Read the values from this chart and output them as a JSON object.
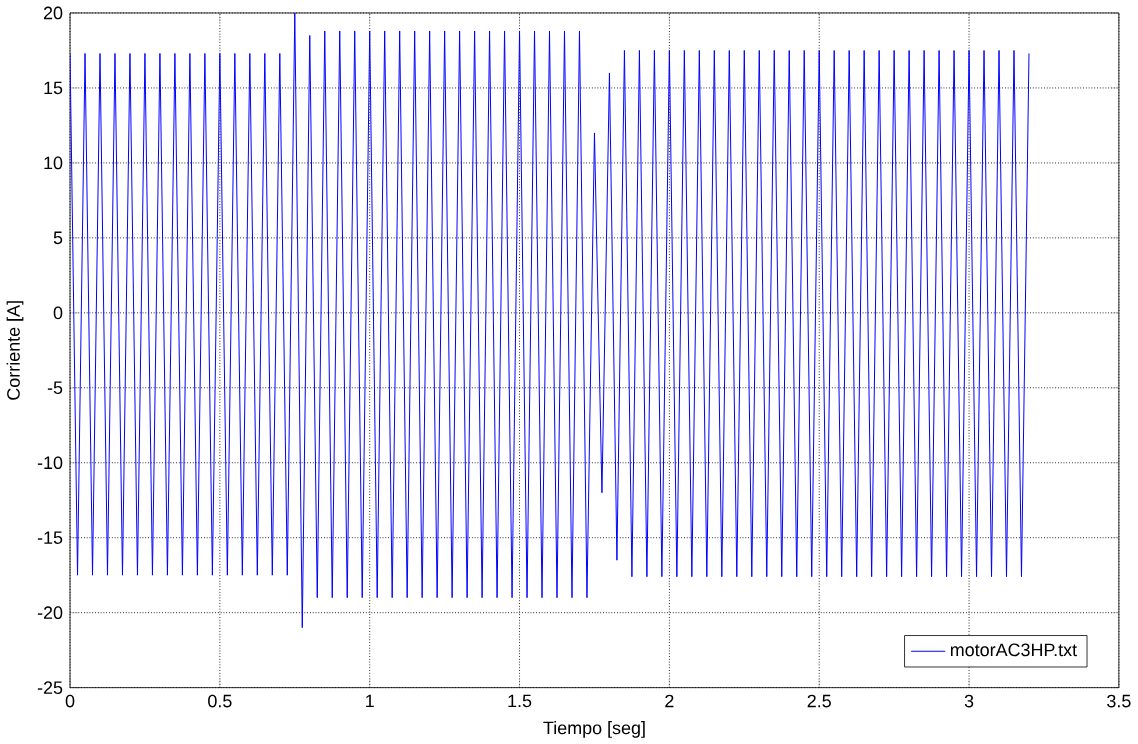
{
  "chart_data": {
    "type": "line",
    "xlabel": "Tiempo [seg]",
    "ylabel": "Corriente [A]",
    "xlim": [
      0,
      3.5
    ],
    "ylim": [
      -25,
      20
    ],
    "xticks": [
      0,
      0.5,
      1,
      1.5,
      2,
      2.5,
      3,
      3.5
    ],
    "yticks": [
      -25,
      -20,
      -15,
      -10,
      -5,
      0,
      5,
      10,
      15,
      20
    ],
    "grid": true,
    "legend": "bottom right",
    "series": [
      {
        "name": "motorAC3HP.txt",
        "color": "#0000ff",
        "x": [
          0,
          0.025,
          0.05,
          0.075,
          0.1,
          0.125,
          0.15,
          0.175,
          0.2,
          0.225,
          0.25,
          0.275,
          0.3,
          0.325,
          0.35,
          0.375,
          0.4,
          0.425,
          0.45,
          0.475,
          0.5,
          0.525,
          0.55,
          0.575,
          0.6,
          0.625,
          0.65,
          0.675,
          0.7,
          0.725,
          0.75,
          0.775,
          0.8,
          0.825,
          0.85,
          0.875,
          0.9,
          0.925,
          0.95,
          0.975,
          1,
          1.025,
          1.05,
          1.075,
          1.1,
          1.125,
          1.15,
          1.175,
          1.2,
          1.225,
          1.25,
          1.275,
          1.3,
          1.325,
          1.35,
          1.375,
          1.4,
          1.425,
          1.45,
          1.475,
          1.5,
          1.525,
          1.55,
          1.575,
          1.6,
          1.625,
          1.65,
          1.675,
          1.7,
          1.725,
          1.75,
          1.775,
          1.8,
          1.825,
          1.85,
          1.875,
          1.9,
          1.925,
          1.95,
          1.975,
          2,
          2.025,
          2.05,
          2.075,
          2.1,
          2.125,
          2.15,
          2.175,
          2.2,
          2.225,
          2.25,
          2.275,
          2.3,
          2.325,
          2.35,
          2.375,
          2.4,
          2.425,
          2.45,
          2.475,
          2.5,
          2.525,
          2.55,
          2.575,
          2.6,
          2.625,
          2.65,
          2.675,
          2.7,
          2.725,
          2.75,
          2.775,
          2.8,
          2.825,
          2.85,
          2.875,
          2.9,
          2.925,
          2.95,
          2.975,
          3,
          3.025,
          3.05,
          3.075,
          3.1,
          3.125,
          3.15,
          3.175,
          3.2
        ],
        "values": [
          17.3,
          -17.5,
          17.3,
          -17.5,
          17.3,
          -17.5,
          17.3,
          -17.5,
          17.3,
          -17.5,
          17.3,
          -17.5,
          17.3,
          -17.5,
          17.3,
          -17.5,
          17.3,
          -17.5,
          17.3,
          -17.5,
          17.3,
          -17.5,
          17.3,
          -17.5,
          17.3,
          -17.5,
          17.3,
          -17.5,
          17.3,
          -17.5,
          20,
          -21,
          18.5,
          -19,
          18.8,
          -19,
          18.8,
          -19,
          18.8,
          -19,
          18.8,
          -19,
          18.8,
          -19,
          18.8,
          -19,
          18.8,
          -19,
          18.8,
          -19,
          18.8,
          -19,
          18.8,
          -19,
          18.8,
          -19,
          18.8,
          -19,
          18.8,
          -19,
          18.8,
          -19,
          18.8,
          -19,
          18.8,
          -19,
          18.8,
          -19,
          18.8,
          -19,
          12,
          -12,
          16,
          -16.5,
          17.5,
          -17.6,
          17.5,
          -17.6,
          17.5,
          -17.6,
          17.5,
          -17.6,
          17.5,
          -17.6,
          17.5,
          -17.6,
          17.5,
          -17.6,
          17.5,
          -17.6,
          17.5,
          -17.6,
          17.5,
          -17.6,
          17.5,
          -17.6,
          17.5,
          -17.6,
          17.5,
          -17.6,
          17.5,
          -17.6,
          17.5,
          -17.6,
          17.5,
          -17.6,
          17.5,
          -17.6,
          17.5,
          -17.6,
          17.5,
          -17.6,
          17.5,
          -17.6,
          17.5,
          -17.6,
          17.5,
          -17.6,
          17.5,
          -17.6,
          17.5,
          -17.6,
          17.5,
          -17.6,
          17.5,
          -17.6,
          17.5,
          -17.6,
          17.3
        ]
      }
    ]
  }
}
